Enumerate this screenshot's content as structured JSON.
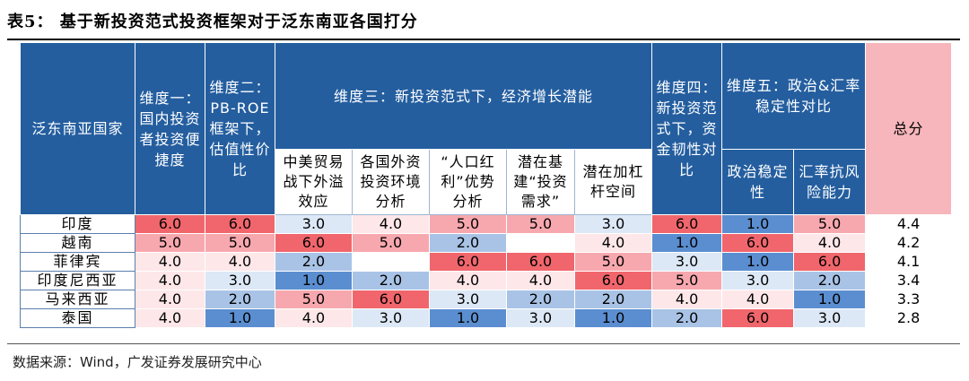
{
  "title": "表5： 基于新投资范式投资框架对于泛东南亚各国打分",
  "source": "数据来源：Wind，广发证券发展研究中心",
  "header": {
    "country": "泛东南亚国家",
    "dim1": "维度一：国内投资者投资便捷度",
    "dim2": "维度二：PB-ROE框架下，估值性价比",
    "dim3": "维度三：新投资范式下，经济增长潜能",
    "dim3_subs": [
      "中美贸易战下外溢效应",
      "各国外资投资环境分析",
      "“人口红利”优势分析",
      "潜在基建“投资需求”",
      "潜在加杠杆空间"
    ],
    "dim4": "维度四：新投资范式下，资金韧性对比",
    "dim5": "维度五：政治&汇率稳定性对比",
    "dim5_subs": [
      "政治稳定性",
      "汇率抗风险能力"
    ],
    "total": "总分"
  },
  "colors": {
    "header_blue": "#245e9f",
    "total_pink": "#f6b6bc",
    "score_1": "#5b8ed0",
    "score_2": "#a9c3e6",
    "score_3": "#dde8f6",
    "score_4": "#fde7e9",
    "score_5": "#f7a8ae",
    "score_6": "#f0666c"
  },
  "rows": [
    {
      "country": "印度",
      "scores": [
        "6.0",
        "6.0",
        "3.0",
        "4.0",
        "5.0",
        "5.0",
        "3.0",
        "6.0",
        "1.0",
        "5.0"
      ],
      "total": "4.4"
    },
    {
      "country": "越南",
      "scores": [
        "5.0",
        "5.0",
        "6.0",
        "5.0",
        "2.0",
        "",
        "4.0",
        "1.0",
        "6.0",
        "4.0"
      ],
      "total": "4.2"
    },
    {
      "country": "菲律宾",
      "scores": [
        "4.0",
        "4.0",
        "2.0",
        "",
        "6.0",
        "6.0",
        "5.0",
        "3.0",
        "1.0",
        "6.0"
      ],
      "total": "4.1"
    },
    {
      "country": "印度尼西亚",
      "scores": [
        "4.0",
        "3.0",
        "1.0",
        "2.0",
        "4.0",
        "4.0",
        "6.0",
        "5.0",
        "3.0",
        "2.0"
      ],
      "total": "3.4"
    },
    {
      "country": "马来西亚",
      "scores": [
        "4.0",
        "2.0",
        "5.0",
        "6.0",
        "3.0",
        "2.0",
        "2.0",
        "4.0",
        "4.0",
        "1.0"
      ],
      "total": "3.3"
    },
    {
      "country": "泰国",
      "scores": [
        "4.0",
        "1.0",
        "4.0",
        "3.0",
        "1.0",
        "3.0",
        "1.0",
        "2.0",
        "6.0",
        "3.0"
      ],
      "total": "2.8"
    }
  ]
}
